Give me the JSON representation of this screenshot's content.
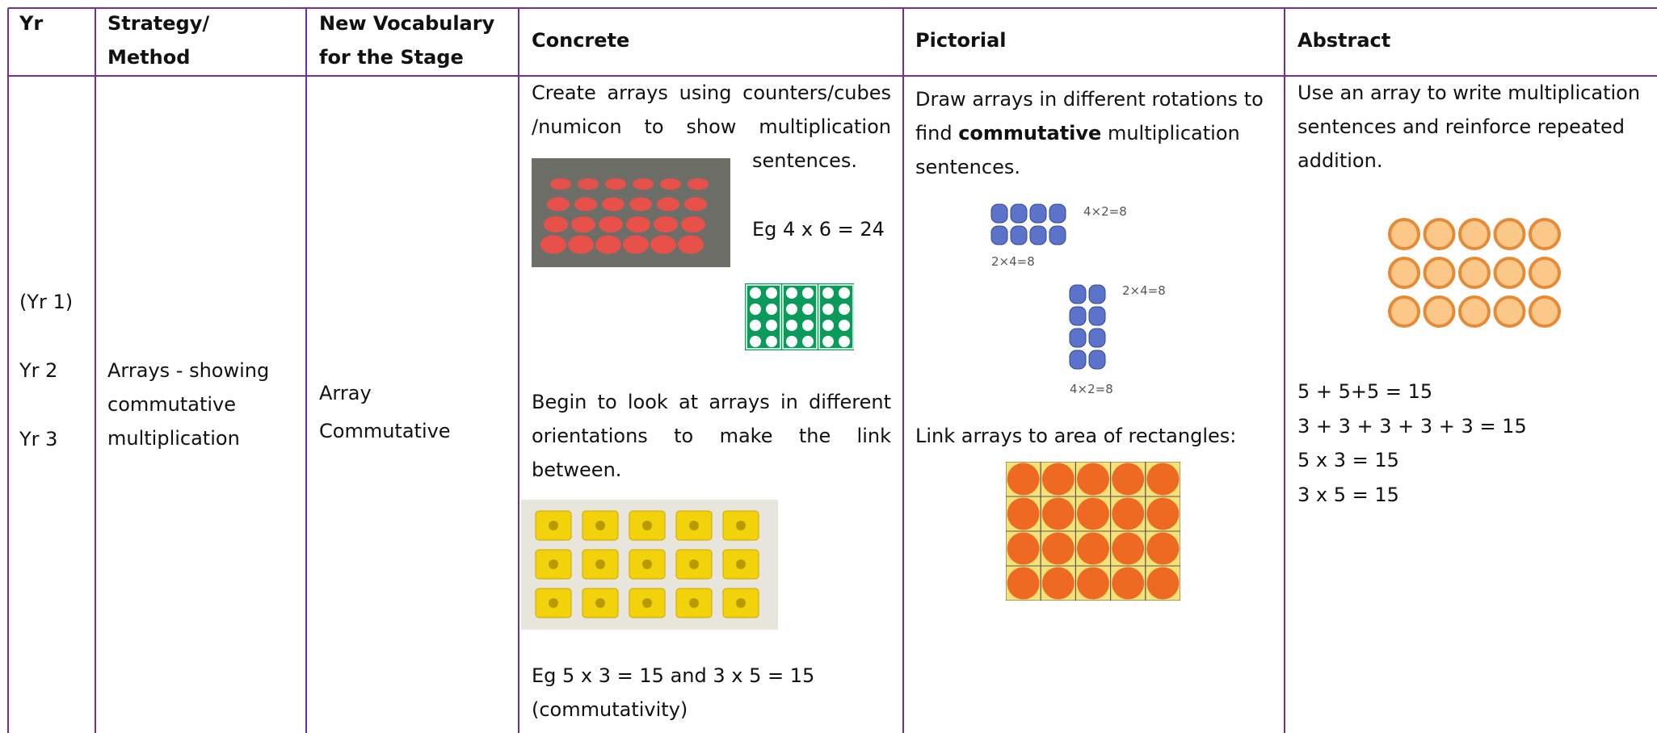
{
  "table": {
    "header": [
      "Yr",
      "Strategy/",
      "Method",
      "New Vocabulary",
      "for the Stage",
      "Concrete",
      "Pictorial",
      "Abstract"
    ],
    "row": {
      "years": [
        "(Yr 1)",
        "Yr 2",
        "Yr 3"
      ],
      "strategy": "Arrays - showing commutative multiplication",
      "vocabulary": [
        "Array",
        "Commutative"
      ],
      "concrete": {
        "text1": "Create arrays using counters/cubes /numicon to show multiplication sentences.",
        "example1": "Eg 4 x 6 = 24",
        "text2": "Begin to look at arrays in different orientations to make the link between.",
        "example2": [
          "Eg 5 x 3 = 15 and 3 x 5 = 15",
          "(commutativity)"
        ]
      },
      "pictorial": {
        "text": [
          "Draw arrays in different rotations to find ",
          "commutative",
          " multiplication sentences."
        ],
        "image_labels": [
          "4×2=8",
          "2×4=8",
          "2×4=8",
          "4×2=8"
        ],
        "link_text": "Link arrays to area of rectangles:"
      },
      "abstract": {
        "text": "Use an array to write multiplication sentences and reinforce repeated addition.",
        "equations": [
          "5 + 5+5 = 15",
          "3 + 3 + 3 + 3 + 3 = 15",
          "5 x 3 = 15",
          "3 x 5 = 15"
        ]
      }
    }
  }
}
